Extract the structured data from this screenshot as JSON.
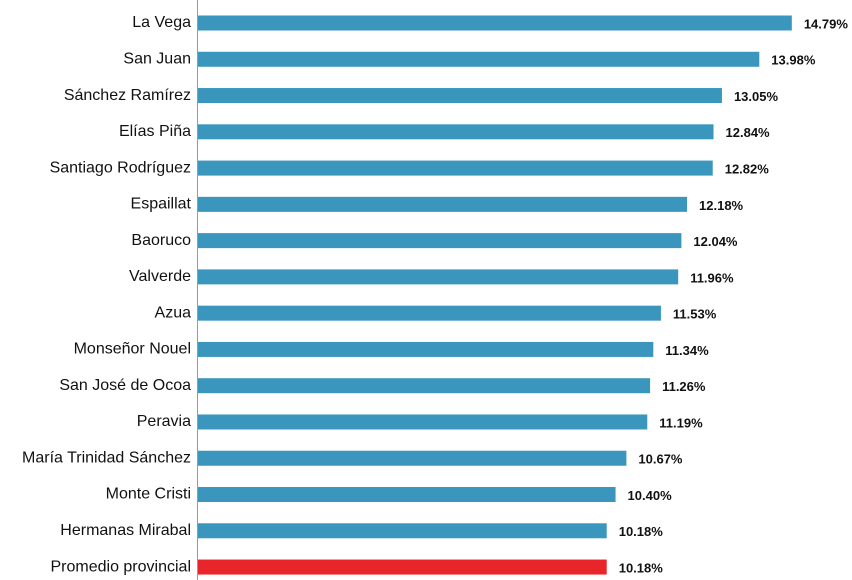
{
  "chart_data": {
    "type": "bar",
    "orientation": "horizontal",
    "categories": [
      "La Vega",
      "San Juan",
      "Sánchez Ramírez",
      "Elías Piña",
      "Santiago Rodríguez",
      "Espaillat",
      "Baoruco",
      "Valverde",
      "Azua",
      "Monseñor Nouel",
      "San José de Ocoa",
      "Peravia",
      "María Trinidad Sánchez",
      "Monte Cristi",
      "Hermanas Mirabal",
      "Promedio provincial"
    ],
    "values": [
      14.79,
      13.98,
      13.05,
      12.84,
      12.82,
      12.18,
      12.04,
      11.96,
      11.53,
      11.34,
      11.26,
      11.19,
      10.67,
      10.4,
      10.18,
      10.18
    ],
    "value_labels": [
      "14.79%",
      "13.98%",
      "13.05%",
      "12.84%",
      "12.82%",
      "12.18%",
      "12.04%",
      "11.96%",
      "11.53%",
      "11.34%",
      "11.26%",
      "11.19%",
      "10.67%",
      "10.40%",
      "10.18%",
      "10.18%"
    ],
    "colors": [
      "#3a96bd",
      "#3a96bd",
      "#3a96bd",
      "#3a96bd",
      "#3a96bd",
      "#3a96bd",
      "#3a96bd",
      "#3a96bd",
      "#3a96bd",
      "#3a96bd",
      "#3a96bd",
      "#3a96bd",
      "#3a96bd",
      "#3a96bd",
      "#3a96bd",
      "#e8262a"
    ]
  }
}
